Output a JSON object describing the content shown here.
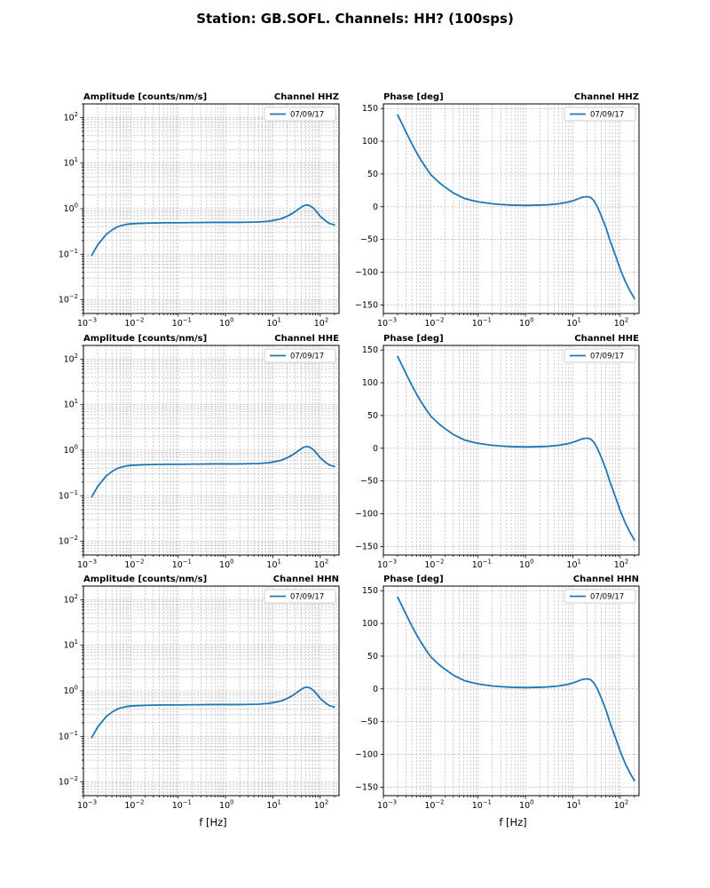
{
  "figure_title": "Station: GB.SOFL. Channels: HH? (100sps)",
  "chart_data": {
    "type": "line",
    "xlabel": "f [Hz]",
    "legend_label": "07/09/17",
    "line_color": "#1f77b4",
    "grid_color": "#b0b0b0",
    "xtick_exponents": [
      -3,
      -2,
      -1,
      0,
      1,
      2
    ],
    "axes": {
      "amplitude": {
        "xscale": "log",
        "yscale": "log",
        "xlim": [
          0.001,
          250
        ],
        "ylim": [
          0.005,
          200
        ],
        "ytick_exponents": [
          -2,
          -1,
          0,
          1,
          2
        ]
      },
      "phase": {
        "xscale": "log",
        "yscale": "linear",
        "xlim": [
          0.001,
          250
        ],
        "ylim": [
          -163,
          157
        ],
        "yticks": [
          -150,
          -100,
          -50,
          0,
          50,
          100,
          150
        ]
      }
    },
    "series": {
      "amplitude": {
        "name": "07/09/17",
        "x": [
          0.0015,
          0.002,
          0.003,
          0.004,
          0.005,
          0.006,
          0.008,
          0.01,
          0.015,
          0.02,
          0.03,
          0.05,
          0.08,
          0.1,
          0.2,
          0.3,
          0.5,
          1,
          2,
          3,
          5,
          8,
          10,
          15,
          20,
          25,
          30,
          35,
          40,
          45,
          50,
          60,
          70,
          85,
          100,
          130,
          160,
          200
        ],
        "y": [
          0.095,
          0.16,
          0.27,
          0.34,
          0.39,
          0.42,
          0.45,
          0.465,
          0.475,
          0.48,
          0.485,
          0.49,
          0.49,
          0.49,
          0.495,
          0.495,
          0.5,
          0.5,
          0.5,
          0.505,
          0.51,
          0.53,
          0.55,
          0.6,
          0.68,
          0.77,
          0.87,
          0.98,
          1.08,
          1.16,
          1.2,
          1.17,
          1.05,
          0.85,
          0.68,
          0.54,
          0.47,
          0.44
        ]
      },
      "phase": {
        "name": "07/09/17",
        "x": [
          0.002,
          0.0025,
          0.003,
          0.004,
          0.005,
          0.006,
          0.008,
          0.01,
          0.015,
          0.02,
          0.03,
          0.05,
          0.08,
          0.1,
          0.2,
          0.3,
          0.5,
          1,
          2,
          3,
          5,
          8,
          10,
          13,
          16,
          20,
          24,
          28,
          33,
          40,
          50,
          60,
          80,
          100,
          130,
          160,
          200
        ],
        "y": [
          140,
          126,
          114,
          96,
          83,
          73,
          59,
          49,
          37,
          30,
          21,
          13,
          9,
          7.5,
          4.5,
          3.5,
          2.5,
          2,
          2.5,
          3,
          4.5,
          7,
          9,
          12,
          14.5,
          15.5,
          14,
          9,
          0,
          -14,
          -32,
          -50,
          -75,
          -95,
          -115,
          -128,
          -140
        ]
      }
    },
    "subplots": [
      {
        "id": "amplitude-hhz",
        "plot": "amplitude",
        "title_left": "Amplitude [counts/nm/s]",
        "title_right": "Channel HHZ"
      },
      {
        "id": "phase-hhz",
        "plot": "phase",
        "title_left": "Phase [deg]",
        "title_right": "Channel HHZ"
      },
      {
        "id": "amplitude-hhe",
        "plot": "amplitude",
        "title_left": "Amplitude [counts/nm/s]",
        "title_right": "Channel HHE"
      },
      {
        "id": "phase-hhe",
        "plot": "phase",
        "title_left": "Phase [deg]",
        "title_right": "Channel HHE"
      },
      {
        "id": "amplitude-hhn",
        "plot": "amplitude",
        "title_left": "Amplitude [counts/nm/s]",
        "title_right": "Channel HHN"
      },
      {
        "id": "phase-hhn",
        "plot": "phase",
        "title_left": "Phase [deg]",
        "title_right": "Channel HHN"
      }
    ]
  }
}
